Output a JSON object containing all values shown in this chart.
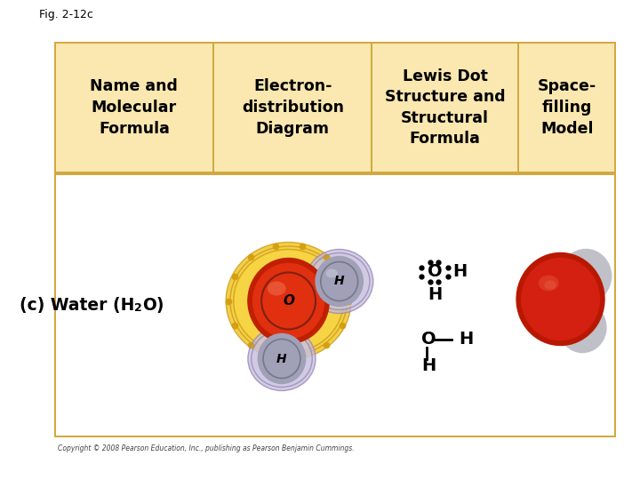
{
  "fig_label": "Fig. 2-12c",
  "background_color": "#ffffff",
  "table_bg_header": "#fae8b0",
  "table_bg_body": "#ffffff",
  "table_border_color": "#d4a840",
  "header_texts": [
    "Name and\nMolecular\nFormula",
    "Electron-\ndistribution\nDiagram",
    "Lewis Dot\nStructure and\nStructural\nFormula",
    "Space-\nfilling\nModel"
  ],
  "copyright": "Copyright © 2008 Pearson Education, Inc., publishing as Pearson Benjamin Cummings.",
  "oxygen_color_dark": "#c02000",
  "oxygen_color_mid": "#e03010",
  "oxygen_color_light": "#f05030",
  "hydrogen_sphere_color": "#a0a0b8",
  "hydrogen_ring_color": "#b0aac8",
  "orbital_gold": "#e8b820",
  "space_o_dark": "#b81800",
  "space_o_mid": "#d42010",
  "space_h_color": "#c0c0c8"
}
